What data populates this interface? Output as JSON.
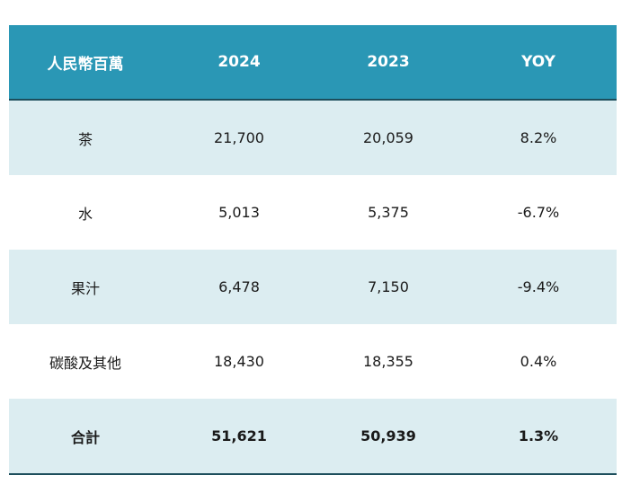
{
  "table": {
    "headers": [
      "人民幣百萬",
      "2024",
      "2023",
      "YOY"
    ],
    "rows": [
      [
        "茶",
        "21,700",
        "20,059",
        "8.2%"
      ],
      [
        "水",
        "5,013",
        "5,375",
        "-6.7%"
      ],
      [
        "果汁",
        "6,478",
        "7,150",
        "-9.4%"
      ],
      [
        "碳酸及其他",
        "18,430",
        "18,355",
        "0.4%"
      ]
    ],
    "total": [
      "合計",
      "51,621",
      "50,939",
      "1.3%"
    ]
  },
  "colors": {
    "header_bg": "#2a97b5",
    "shaded_row_bg": "#dcedf1",
    "border": "#1d4e5c"
  }
}
